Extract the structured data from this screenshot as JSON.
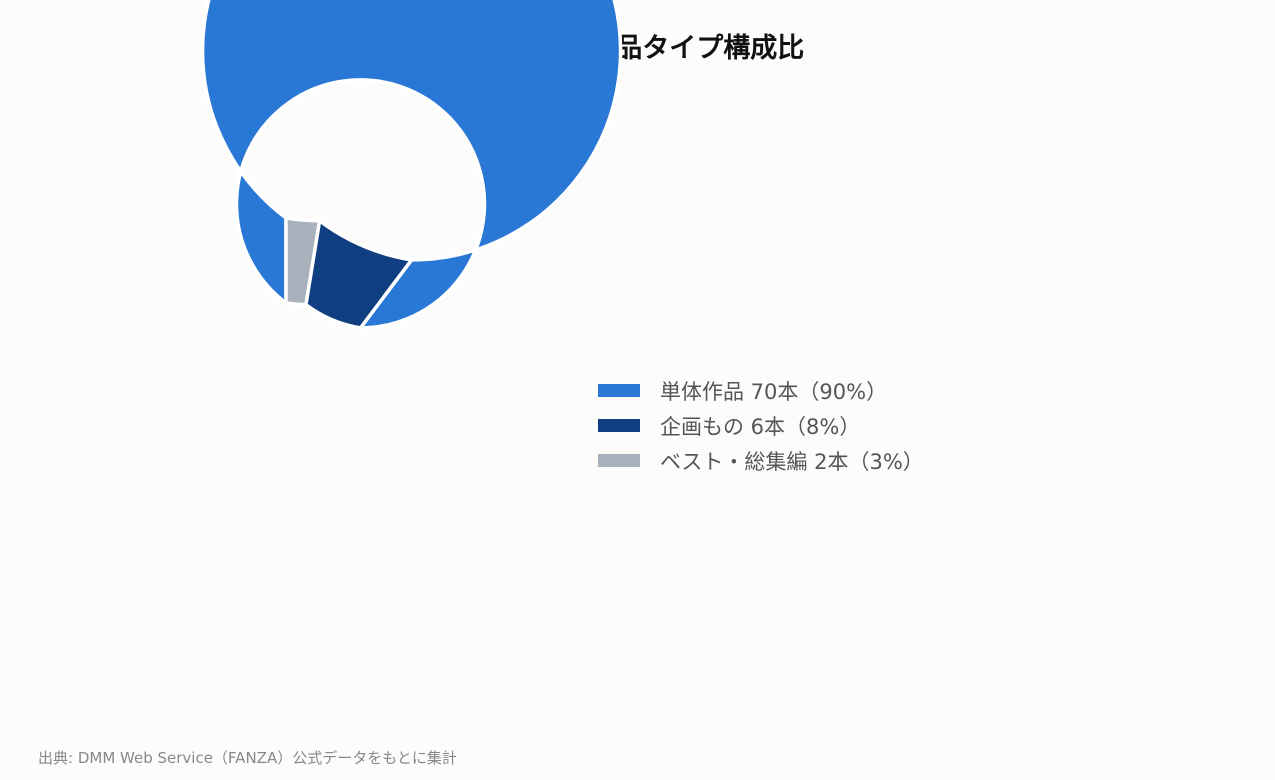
{
  "title": "彩月七緒 作品タイプ構成比",
  "source": "出典: DMM Web Service（FANZA）公式データをもとに集計",
  "chart_data": {
    "type": "pie",
    "donut": true,
    "title": "彩月七緒 作品タイプ構成比",
    "legend_position": "right",
    "slices": [
      {
        "label": "単体作品 70本（90%）",
        "category": "単体作品",
        "value": 70,
        "percent": 90,
        "color": "#2a78d6"
      },
      {
        "label": "企画もの 6本（8%）",
        "category": "企画もの",
        "value": 6,
        "percent": 8,
        "color": "#0f3f80"
      },
      {
        "label": "ベスト・総集編 2本（3%）",
        "category": "ベスト・総集編",
        "value": 2,
        "percent": 3,
        "color": "#a8b1bc"
      }
    ]
  }
}
